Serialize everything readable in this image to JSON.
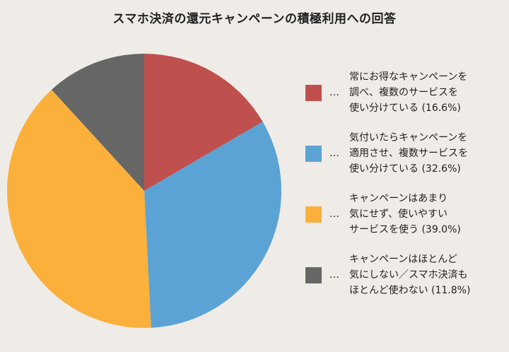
{
  "chart_data": {
    "type": "pie",
    "title": "スマホ決済の還元キャンペーンの積極利用への回答",
    "slices": [
      {
        "lines": [
          "常にお得なキャンペーンを",
          "調べ、複数のサービスを",
          "使い分けている (16.6%)"
        ],
        "value": 16.6,
        "color": "#c0504d"
      },
      {
        "lines": [
          "気付いたらキャンペーンを",
          "適用させ、複数サービスを",
          "使い分けている (32.6%)"
        ],
        "value": 32.6,
        "color": "#5ba3d4"
      },
      {
        "lines": [
          "キャンペーンはあまり",
          "気にせず、使いやすい",
          "サービスを使う (39.0%)"
        ],
        "value": 39.0,
        "color": "#fbb03b"
      },
      {
        "lines": [
          "キャンペーンはほとんど",
          "気にしない／スマホ決済も",
          "ほとんど使わない (11.8%)"
        ],
        "value": 11.8,
        "color": "#666666"
      }
    ],
    "legend_marker": "…",
    "legend_placement": "right",
    "start_angle": "top",
    "direction": "clockwise"
  }
}
